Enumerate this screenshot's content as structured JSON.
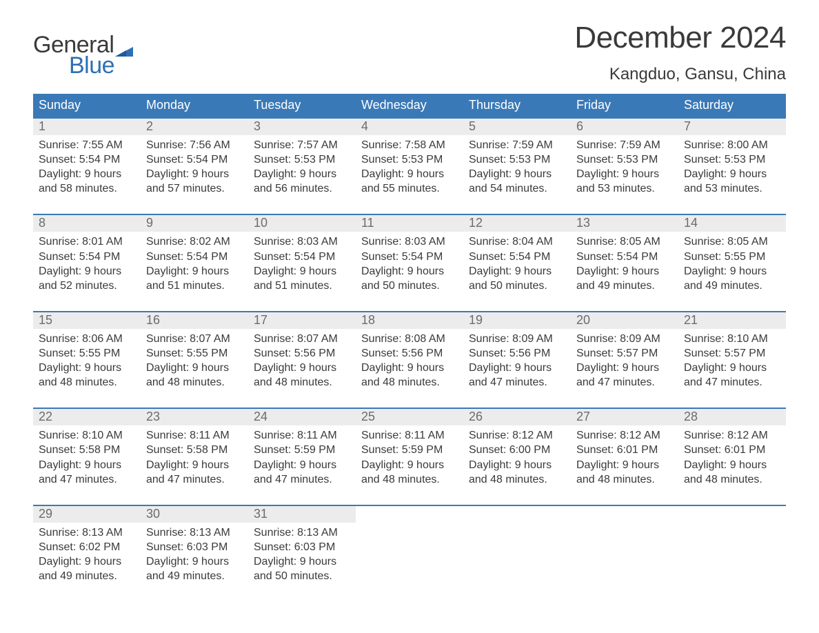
{
  "logo": {
    "line1": "General",
    "line2": "Blue",
    "flag_color": "#2d6fb5",
    "text_color_general": "#3a3a3a",
    "text_color_blue": "#2d6fb5"
  },
  "title": "December 2024",
  "location": "Kangduo, Gansu, China",
  "colors": {
    "header_bg": "#3a79b7",
    "header_text": "#ffffff",
    "daynum_bg": "#ececec",
    "daynum_text": "#6b6b6b",
    "body_text": "#3a3a3a",
    "week_border": "#3a79b7",
    "page_bg": "#ffffff"
  },
  "typography": {
    "title_fontsize": 44,
    "location_fontsize": 24,
    "dow_fontsize": 18,
    "daynum_fontsize": 18,
    "body_fontsize": 16
  },
  "days_of_week": [
    "Sunday",
    "Monday",
    "Tuesday",
    "Wednesday",
    "Thursday",
    "Friday",
    "Saturday"
  ],
  "weeks": [
    [
      {
        "n": "1",
        "sr": "Sunrise: 7:55 AM",
        "ss": "Sunset: 5:54 PM",
        "d1": "Daylight: 9 hours",
        "d2": "and 58 minutes."
      },
      {
        "n": "2",
        "sr": "Sunrise: 7:56 AM",
        "ss": "Sunset: 5:54 PM",
        "d1": "Daylight: 9 hours",
        "d2": "and 57 minutes."
      },
      {
        "n": "3",
        "sr": "Sunrise: 7:57 AM",
        "ss": "Sunset: 5:53 PM",
        "d1": "Daylight: 9 hours",
        "d2": "and 56 minutes."
      },
      {
        "n": "4",
        "sr": "Sunrise: 7:58 AM",
        "ss": "Sunset: 5:53 PM",
        "d1": "Daylight: 9 hours",
        "d2": "and 55 minutes."
      },
      {
        "n": "5",
        "sr": "Sunrise: 7:59 AM",
        "ss": "Sunset: 5:53 PM",
        "d1": "Daylight: 9 hours",
        "d2": "and 54 minutes."
      },
      {
        "n": "6",
        "sr": "Sunrise: 7:59 AM",
        "ss": "Sunset: 5:53 PM",
        "d1": "Daylight: 9 hours",
        "d2": "and 53 minutes."
      },
      {
        "n": "7",
        "sr": "Sunrise: 8:00 AM",
        "ss": "Sunset: 5:53 PM",
        "d1": "Daylight: 9 hours",
        "d2": "and 53 minutes."
      }
    ],
    [
      {
        "n": "8",
        "sr": "Sunrise: 8:01 AM",
        "ss": "Sunset: 5:54 PM",
        "d1": "Daylight: 9 hours",
        "d2": "and 52 minutes."
      },
      {
        "n": "9",
        "sr": "Sunrise: 8:02 AM",
        "ss": "Sunset: 5:54 PM",
        "d1": "Daylight: 9 hours",
        "d2": "and 51 minutes."
      },
      {
        "n": "10",
        "sr": "Sunrise: 8:03 AM",
        "ss": "Sunset: 5:54 PM",
        "d1": "Daylight: 9 hours",
        "d2": "and 51 minutes."
      },
      {
        "n": "11",
        "sr": "Sunrise: 8:03 AM",
        "ss": "Sunset: 5:54 PM",
        "d1": "Daylight: 9 hours",
        "d2": "and 50 minutes."
      },
      {
        "n": "12",
        "sr": "Sunrise: 8:04 AM",
        "ss": "Sunset: 5:54 PM",
        "d1": "Daylight: 9 hours",
        "d2": "and 50 minutes."
      },
      {
        "n": "13",
        "sr": "Sunrise: 8:05 AM",
        "ss": "Sunset: 5:54 PM",
        "d1": "Daylight: 9 hours",
        "d2": "and 49 minutes."
      },
      {
        "n": "14",
        "sr": "Sunrise: 8:05 AM",
        "ss": "Sunset: 5:55 PM",
        "d1": "Daylight: 9 hours",
        "d2": "and 49 minutes."
      }
    ],
    [
      {
        "n": "15",
        "sr": "Sunrise: 8:06 AM",
        "ss": "Sunset: 5:55 PM",
        "d1": "Daylight: 9 hours",
        "d2": "and 48 minutes."
      },
      {
        "n": "16",
        "sr": "Sunrise: 8:07 AM",
        "ss": "Sunset: 5:55 PM",
        "d1": "Daylight: 9 hours",
        "d2": "and 48 minutes."
      },
      {
        "n": "17",
        "sr": "Sunrise: 8:07 AM",
        "ss": "Sunset: 5:56 PM",
        "d1": "Daylight: 9 hours",
        "d2": "and 48 minutes."
      },
      {
        "n": "18",
        "sr": "Sunrise: 8:08 AM",
        "ss": "Sunset: 5:56 PM",
        "d1": "Daylight: 9 hours",
        "d2": "and 48 minutes."
      },
      {
        "n": "19",
        "sr": "Sunrise: 8:09 AM",
        "ss": "Sunset: 5:56 PM",
        "d1": "Daylight: 9 hours",
        "d2": "and 47 minutes."
      },
      {
        "n": "20",
        "sr": "Sunrise: 8:09 AM",
        "ss": "Sunset: 5:57 PM",
        "d1": "Daylight: 9 hours",
        "d2": "and 47 minutes."
      },
      {
        "n": "21",
        "sr": "Sunrise: 8:10 AM",
        "ss": "Sunset: 5:57 PM",
        "d1": "Daylight: 9 hours",
        "d2": "and 47 minutes."
      }
    ],
    [
      {
        "n": "22",
        "sr": "Sunrise: 8:10 AM",
        "ss": "Sunset: 5:58 PM",
        "d1": "Daylight: 9 hours",
        "d2": "and 47 minutes."
      },
      {
        "n": "23",
        "sr": "Sunrise: 8:11 AM",
        "ss": "Sunset: 5:58 PM",
        "d1": "Daylight: 9 hours",
        "d2": "and 47 minutes."
      },
      {
        "n": "24",
        "sr": "Sunrise: 8:11 AM",
        "ss": "Sunset: 5:59 PM",
        "d1": "Daylight: 9 hours",
        "d2": "and 47 minutes."
      },
      {
        "n": "25",
        "sr": "Sunrise: 8:11 AM",
        "ss": "Sunset: 5:59 PM",
        "d1": "Daylight: 9 hours",
        "d2": "and 48 minutes."
      },
      {
        "n": "26",
        "sr": "Sunrise: 8:12 AM",
        "ss": "Sunset: 6:00 PM",
        "d1": "Daylight: 9 hours",
        "d2": "and 48 minutes."
      },
      {
        "n": "27",
        "sr": "Sunrise: 8:12 AM",
        "ss": "Sunset: 6:01 PM",
        "d1": "Daylight: 9 hours",
        "d2": "and 48 minutes."
      },
      {
        "n": "28",
        "sr": "Sunrise: 8:12 AM",
        "ss": "Sunset: 6:01 PM",
        "d1": "Daylight: 9 hours",
        "d2": "and 48 minutes."
      }
    ],
    [
      {
        "n": "29",
        "sr": "Sunrise: 8:13 AM",
        "ss": "Sunset: 6:02 PM",
        "d1": "Daylight: 9 hours",
        "d2": "and 49 minutes."
      },
      {
        "n": "30",
        "sr": "Sunrise: 8:13 AM",
        "ss": "Sunset: 6:03 PM",
        "d1": "Daylight: 9 hours",
        "d2": "and 49 minutes."
      },
      {
        "n": "31",
        "sr": "Sunrise: 8:13 AM",
        "ss": "Sunset: 6:03 PM",
        "d1": "Daylight: 9 hours",
        "d2": "and 50 minutes."
      },
      {
        "empty": true
      },
      {
        "empty": true
      },
      {
        "empty": true
      },
      {
        "empty": true
      }
    ]
  ]
}
